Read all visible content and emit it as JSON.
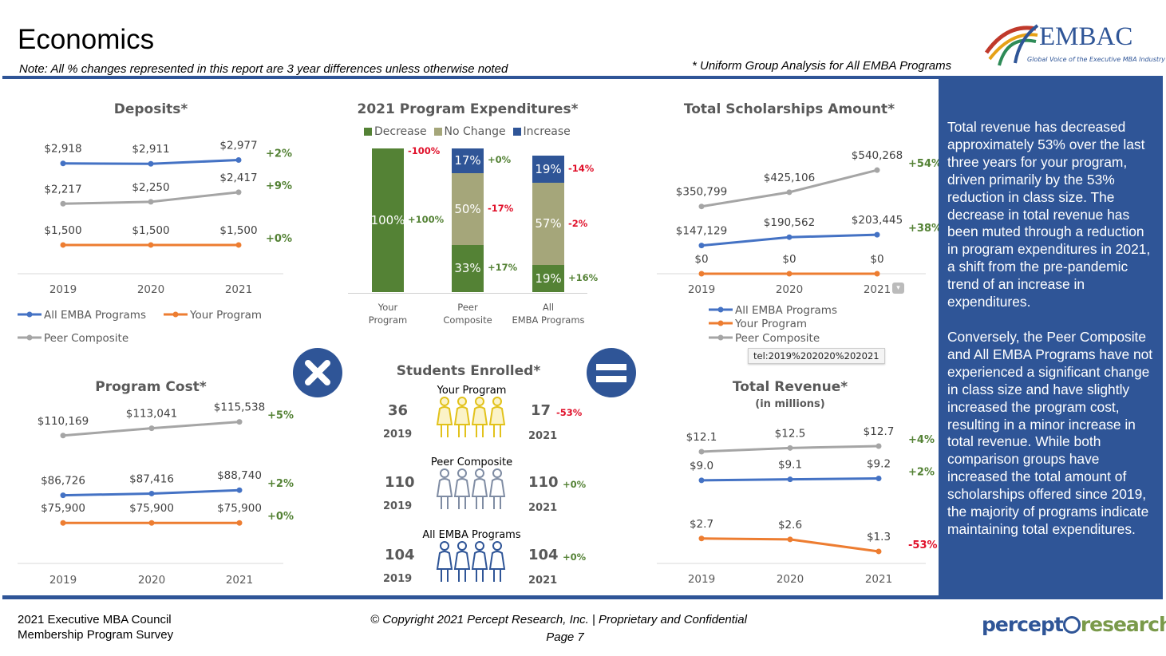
{
  "header": {
    "title": "Economics",
    "note": "Note:  All % changes represented in this report are 3 year differences unless otherwise noted",
    "uniform_note": "* Uniform Group Analysis for All EMBA Programs",
    "logo_text": "EMBAC",
    "logo_tagline": "Global Voice of the Executive MBA Industry"
  },
  "colors": {
    "all_emba": "#4472c4",
    "your_program": "#ed7d31",
    "peer": "#a5a5a5",
    "brand_blue": "#2f5597",
    "positive": "#548235",
    "negative": "#e0102a",
    "decrease": "#548235",
    "no_change": "#a5a67a",
    "increase": "#2f5597"
  },
  "operators": {
    "multiply": "multiply-icon",
    "equals": "equals-icon"
  },
  "chart_data": [
    {
      "type": "line",
      "title": "Deposits*",
      "categories": [
        "2019",
        "2020",
        "2021"
      ],
      "ylim": [
        1000,
        3400
      ],
      "series": [
        {
          "name": "All EMBA Programs",
          "color": "#4472c4",
          "values": [
            2918,
            2911,
            2977
          ],
          "labels": [
            "$2,918",
            "$2,911",
            "$2,977"
          ],
          "change": "+2%"
        },
        {
          "name": "Peer Composite",
          "color": "#a5a5a5",
          "values": [
            2217,
            2250,
            2417
          ],
          "labels": [
            "$2,217",
            "$2,250",
            "$2,417"
          ],
          "change": "+9%"
        },
        {
          "name": "Your Program",
          "color": "#ed7d31",
          "values": [
            1500,
            1500,
            1500
          ],
          "labels": [
            "$1,500",
            "$1,500",
            "$1,500"
          ],
          "change": "+0%"
        }
      ],
      "legend": [
        "All EMBA Programs",
        "Your Program",
        "Peer Composite"
      ]
    },
    {
      "type": "line",
      "title": "Total Scholarships Amount*",
      "categories": [
        "2019",
        "2020",
        "2021"
      ],
      "ylim": [
        0,
        720000
      ],
      "series": [
        {
          "name": "Peer Composite",
          "color": "#a5a5a5",
          "values": [
            350799,
            425106,
            540268
          ],
          "labels": [
            "$350,799",
            "$425,106",
            "$540,268"
          ],
          "change": "+54%"
        },
        {
          "name": "All EMBA Programs",
          "color": "#4472c4",
          "values": [
            147129,
            190562,
            203445
          ],
          "labels": [
            "$147,129",
            "$190,562",
            "$203,445"
          ],
          "change": "+38%"
        },
        {
          "name": "Your Program",
          "color": "#ed7d31",
          "values": [
            0,
            0,
            0
          ],
          "labels": [
            "$0",
            "$0",
            "$0"
          ],
          "change": ""
        }
      ],
      "legend": [
        "All EMBA Programs",
        "Your Program",
        "Peer Composite"
      ],
      "tooltip": "tel:2019%202020%202021"
    },
    {
      "type": "line",
      "title": "Program Cost*",
      "categories": [
        "2019",
        "2020",
        "2021"
      ],
      "ylim": [
        60000,
        124500
      ],
      "series": [
        {
          "name": "Peer Composite",
          "color": "#a5a5a5",
          "values": [
            110169,
            113041,
            115538
          ],
          "labels": [
            "$110,169",
            "$113,041",
            "$115,538"
          ],
          "change": "+5%"
        },
        {
          "name": "All EMBA Programs",
          "color": "#4472c4",
          "values": [
            86726,
            87416,
            88740
          ],
          "labels": [
            "$86,726",
            "$87,416",
            "$88,740"
          ],
          "change": "+2%"
        },
        {
          "name": "Your Program",
          "color": "#ed7d31",
          "values": [
            75900,
            75900,
            75900
          ],
          "labels": [
            "$75,900",
            "$75,900",
            "$75,900"
          ],
          "change": "+0%"
        }
      ]
    },
    {
      "type": "line",
      "title": "Total Revenue*",
      "subtitle": "(in millions)",
      "categories": [
        "2019",
        "2020",
        "2021"
      ],
      "ylim": [
        0,
        17.8
      ],
      "series": [
        {
          "name": "Peer Composite",
          "color": "#a5a5a5",
          "values": [
            12.1,
            12.5,
            12.7
          ],
          "labels": [
            "$12.1",
            "$12.5",
            "$12.7"
          ],
          "change": "+4%"
        },
        {
          "name": "All EMBA Programs",
          "color": "#4472c4",
          "values": [
            9.0,
            9.1,
            9.2
          ],
          "labels": [
            "$9.0",
            "$9.1",
            "$9.2"
          ],
          "change": "+2%"
        },
        {
          "name": "Your Program",
          "color": "#ed7d31",
          "values": [
            2.7,
            2.6,
            1.3
          ],
          "labels": [
            "$2.7",
            "$2.6",
            "$1.3"
          ],
          "change": "-53%"
        }
      ]
    },
    {
      "type": "bar",
      "stacked": true,
      "title": "2021 Program Expenditures*",
      "categories": [
        "Your Program",
        "Peer Composite",
        "All EMBA Programs"
      ],
      "legend": [
        "Decrease",
        "No Change",
        "Increase"
      ],
      "series": [
        {
          "name": "Decrease",
          "color": "#548235",
          "values": [
            100,
            33,
            19
          ],
          "changes": [
            "+100%",
            "+17%",
            "+16%"
          ]
        },
        {
          "name": "No Change",
          "color": "#a5a67a",
          "values": [
            0,
            50,
            57
          ],
          "changes": [
            "",
            "-17%",
            "-2%"
          ]
        },
        {
          "name": "Increase",
          "color": "#2f5597",
          "values": [
            0,
            17,
            19
          ],
          "changes": [
            "-100%",
            "+0%",
            "-14%"
          ]
        }
      ],
      "top_label_clipped": "0%"
    }
  ],
  "students": {
    "title": "Students Enrolled*",
    "groups": [
      {
        "label": "Your Program",
        "y2019": "36",
        "y2021": "17",
        "change": "-53%",
        "icon_color": "#e2c21c"
      },
      {
        "label": "Peer Composite",
        "y2019": "110",
        "y2021": "110",
        "change": "+0%",
        "icon_color": "#7f8ca3"
      },
      {
        "label": "All EMBA Programs",
        "y2019": "104",
        "y2021": "104",
        "change": "+0%",
        "icon_color": "#2f5597"
      }
    ],
    "year_a": "2019",
    "year_b": "2021"
  },
  "panel": {
    "paragraphs": [
      "Total revenue has decreased approximately 53% over the last three years for your program, driven primarily by the 53% reduction in class size. The decrease in total revenue has been muted through a reduction in program expenditures in 2021, a shift from the pre-pandemic trend of an increase in expenditures.",
      "Conversely, the Peer Composite and All EMBA Programs have not experienced a significant change in class size and have slightly increased the program cost, resulting in a minor increase in total revenue. While both comparison groups have increased the total amount of scholarships offered since 2019, the majority of programs indicate maintaining total expenditures."
    ]
  },
  "footer": {
    "survey_line1": "2021 Executive MBA Council",
    "survey_line2": "Membership Program Survey",
    "copyright": "© Copyright 2021 Percept Research, Inc. | Proprietary and Confidential",
    "page": "Page 7",
    "logo_text_a": "percept",
    "logo_text_b": "research"
  }
}
